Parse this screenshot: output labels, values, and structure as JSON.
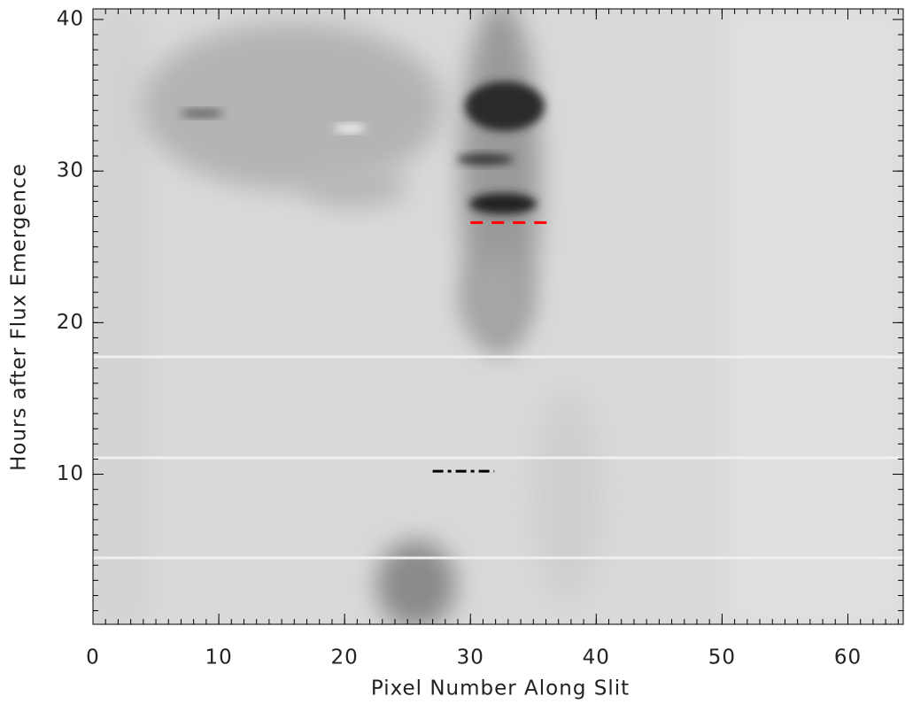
{
  "chart_data": {
    "type": "image",
    "xlabel": "Pixel Number Along Slit",
    "ylabel": "Hours after Flux Emergence",
    "xlim": [
      0,
      64.4
    ],
    "ylim": [
      0.1,
      40.7
    ],
    "xticks": [
      0,
      10,
      20,
      30,
      40,
      50,
      60
    ],
    "yticks": [
      10,
      20,
      30,
      40
    ],
    "x_minor_step": 1,
    "y_minor_step": 1,
    "lines": [
      {
        "x": [
          30,
          36.4
        ],
        "y": [
          26.6,
          26.6
        ],
        "color": "#ff0000",
        "dash": "14 10"
      },
      {
        "x": [
          27,
          31.9
        ],
        "y": [
          10.2,
          10.2
        ],
        "color": "#000000",
        "dash": "12 5 4 5"
      }
    ]
  }
}
